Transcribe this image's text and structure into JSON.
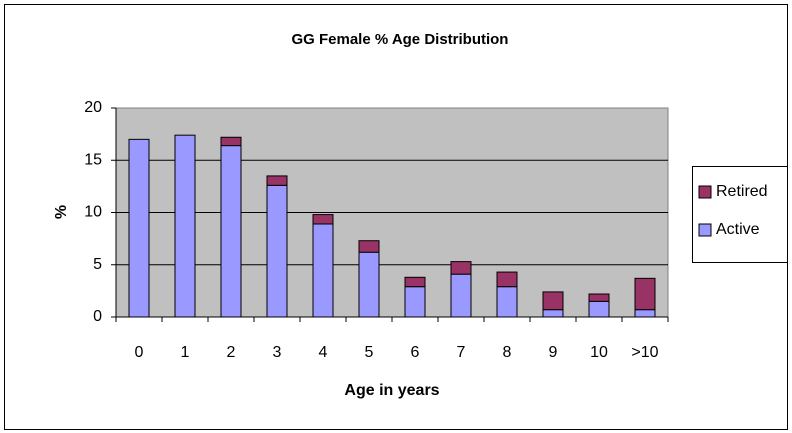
{
  "chart_data": {
    "type": "stacked_bar",
    "title": "GG Female % Age Distribution",
    "x_label": "Age in years",
    "y_label": "%",
    "categories": [
      "0",
      "1",
      "2",
      "3",
      "4",
      "5",
      "6",
      "7",
      "8",
      "9",
      "10",
      ">10"
    ],
    "series": [
      {
        "name": "Active",
        "color": "#9999ff",
        "values": [
          17.0,
          17.4,
          16.4,
          12.6,
          8.9,
          6.2,
          2.9,
          4.1,
          2.9,
          0.7,
          1.5,
          0.7
        ]
      },
      {
        "name": "Retired",
        "color": "#993366",
        "values": [
          0,
          0,
          0.8,
          0.9,
          0.9,
          1.1,
          0.9,
          1.2,
          1.4,
          1.7,
          0.7,
          3.0
        ]
      }
    ],
    "ylim": [
      0,
      20
    ],
    "yticks": [
      0,
      5,
      10,
      15,
      20
    ],
    "grid": true,
    "legend": "right"
  }
}
